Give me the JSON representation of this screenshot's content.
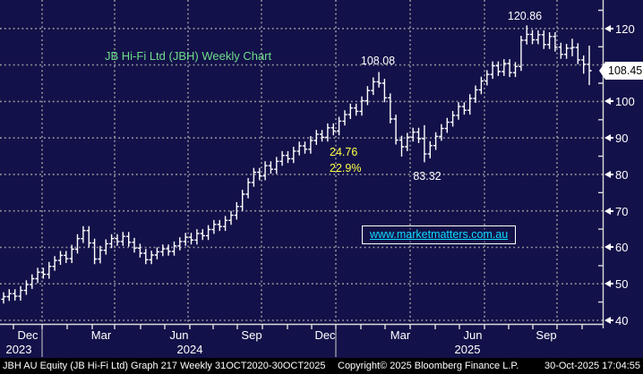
{
  "window": {
    "background": "#131149"
  },
  "title": {
    "text": "JB Hi-Fi Ltd (JBH) Weekly Chart",
    "color": "#6fdc8c"
  },
  "watermark": {
    "url": "www.marketmatters.com.au",
    "color": "#0cdcff"
  },
  "annotations": {
    "feb_2025_high": "108.08",
    "aug_2025_high": "120.86",
    "apr_2025_low": "83.32",
    "decline_points": "24.76",
    "decline_pct": "22.9%",
    "last_price": "108.45"
  },
  "x_axis": {
    "month_labels": [
      "Dec",
      "Mar",
      "Jun",
      "Sep",
      "Dec",
      "Mar",
      "Jun",
      "Sep"
    ],
    "year_labels": [
      "2023",
      "2024",
      "2025"
    ]
  },
  "y_axis": {
    "tick_labels": [
      "40",
      "50",
      "60",
      "70",
      "80",
      "90",
      "100",
      "110",
      "120"
    ]
  },
  "footer": {
    "left": "JBH AU Equity (JB Hi-Fi Ltd) Graph 217 Weekly 31OCT2020-30OCT2025",
    "center": "Copyright© 2025 Bloomberg Finance L.P.",
    "right": "30-Oct-2025 17:04:55"
  },
  "colors": {
    "background": "#131149",
    "grid": "#a8a8a8",
    "bars": "#ffffff",
    "title_green": "#6fdc8c",
    "annotation_yellow": "#ffff44",
    "watermark_cyan": "#0cdcff",
    "axis_text": "#ffffff"
  },
  "chart_data": {
    "type": "bar",
    "subtype": "weekly-ohlc-bars",
    "title": "JB Hi-Fi Ltd (JBH) Weekly Chart",
    "x_range": [
      "Nov 2023",
      "Oct 2025"
    ],
    "ylim": [
      40,
      128
    ],
    "y_ticks": [
      40,
      50,
      60,
      70,
      80,
      90,
      100,
      110,
      120
    ],
    "y_minor_ticks": [
      45,
      55,
      65,
      75,
      85,
      95,
      105,
      115,
      125
    ],
    "x_gridline_months": [
      "Dec 2023",
      "Mar 2024",
      "Jun 2024",
      "Sep 2024",
      "Dec 2024",
      "Mar 2025",
      "Jun 2025",
      "Sep 2025"
    ],
    "grid": "dotted",
    "legend_position": "none",
    "last_price": 108.45,
    "open_first": 45.8,
    "open_rule": "previous_close",
    "weeks_hlc": [
      [
        47.7,
        44.6,
        46.5
      ],
      [
        48.5,
        45.3,
        47.3
      ],
      [
        48.5,
        45.4,
        46.6
      ],
      [
        49.4,
        45.4,
        48.2
      ],
      [
        51.0,
        47.0,
        49.8
      ],
      [
        52.6,
        48.6,
        51.4
      ],
      [
        54.4,
        50.2,
        53.2
      ],
      [
        54.4,
        51.4,
        52.6
      ],
      [
        56.0,
        51.4,
        54.8
      ],
      [
        57.6,
        53.6,
        56.4
      ],
      [
        59.0,
        55.2,
        57.8
      ],
      [
        59.0,
        55.7,
        56.9
      ],
      [
        60.7,
        55.7,
        59.5
      ],
      [
        63.6,
        58.3,
        62.4
      ],
      [
        65.8,
        61.2,
        64.6
      ],
      [
        65.8,
        60.0,
        61.2
      ],
      [
        62.4,
        55.4,
        56.8
      ],
      [
        60.4,
        55.6,
        59.2
      ],
      [
        62.2,
        58.0,
        61.0
      ],
      [
        63.6,
        59.8,
        62.4
      ],
      [
        63.6,
        60.4,
        61.6
      ],
      [
        64.2,
        60.4,
        63.0
      ],
      [
        64.2,
        60.2,
        61.4
      ],
      [
        62.6,
        58.6,
        59.8
      ],
      [
        61.0,
        57.2,
        58.4
      ],
      [
        59.6,
        55.4,
        56.6
      ],
      [
        59.1,
        55.4,
        57.9
      ],
      [
        60.0,
        56.7,
        58.8
      ],
      [
        60.8,
        57.6,
        59.6
      ],
      [
        60.8,
        57.7,
        58.9
      ],
      [
        61.6,
        57.7,
        60.4
      ],
      [
        62.8,
        59.2,
        61.6
      ],
      [
        64.0,
        60.4,
        62.8
      ],
      [
        64.0,
        60.8,
        62.0
      ],
      [
        65.0,
        60.8,
        63.8
      ],
      [
        65.0,
        62.0,
        63.2
      ],
      [
        66.1,
        62.0,
        64.9
      ],
      [
        67.5,
        63.7,
        66.3
      ],
      [
        67.5,
        64.5,
        65.7
      ],
      [
        68.6,
        64.5,
        67.4
      ],
      [
        70.0,
        66.2,
        68.8
      ],
      [
        72.4,
        67.6,
        71.2
      ],
      [
        75.8,
        70.0,
        74.6
      ],
      [
        79.0,
        73.4,
        77.8
      ],
      [
        81.8,
        76.6,
        80.6
      ],
      [
        81.8,
        78.4,
        79.6
      ],
      [
        83.6,
        78.4,
        82.4
      ],
      [
        83.6,
        80.2,
        81.4
      ],
      [
        84.8,
        80.2,
        83.6
      ],
      [
        86.4,
        82.4,
        85.2
      ],
      [
        86.4,
        83.1,
        84.3
      ],
      [
        87.6,
        83.1,
        86.4
      ],
      [
        89.0,
        85.2,
        87.8
      ],
      [
        89.0,
        85.7,
        86.9
      ],
      [
        90.5,
        85.7,
        89.3
      ],
      [
        92.2,
        88.1,
        91.0
      ],
      [
        92.2,
        89.0,
        90.2
      ],
      [
        94.0,
        89.0,
        92.8
      ],
      [
        94.0,
        90.7,
        91.9
      ],
      [
        95.8,
        90.7,
        94.6
      ],
      [
        97.6,
        93.4,
        96.4
      ],
      [
        99.4,
        95.2,
        98.2
      ],
      [
        99.4,
        96.1,
        97.3
      ],
      [
        101.4,
        96.1,
        100.2
      ],
      [
        104.2,
        99.0,
        103.0
      ],
      [
        106.6,
        101.8,
        105.4
      ],
      [
        108.08,
        103.8,
        105.0
      ],
      [
        106.2,
        99.8,
        101.0
      ],
      [
        102.2,
        94.0,
        95.2
      ],
      [
        96.4,
        88.2,
        89.4
      ],
      [
        90.6,
        84.9,
        87.6
      ],
      [
        91.4,
        86.4,
        90.2
      ],
      [
        92.8,
        89.0,
        91.6
      ],
      [
        92.8,
        88.6,
        89.8
      ],
      [
        93.5,
        83.32,
        85.6
      ],
      [
        89.1,
        84.4,
        87.9
      ],
      [
        91.6,
        86.7,
        90.4
      ],
      [
        93.8,
        89.2,
        92.6
      ],
      [
        95.5,
        91.4,
        94.3
      ],
      [
        97.4,
        93.1,
        96.2
      ],
      [
        99.8,
        95.0,
        98.6
      ],
      [
        99.8,
        96.4,
        97.6
      ],
      [
        102.0,
        96.4,
        100.8
      ],
      [
        104.4,
        99.6,
        103.2
      ],
      [
        106.8,
        102.0,
        105.6
      ],
      [
        108.6,
        104.4,
        107.4
      ],
      [
        111.0,
        106.2,
        109.8
      ],
      [
        111.0,
        107.0,
        108.2
      ],
      [
        111.6,
        107.0,
        110.4
      ],
      [
        111.6,
        106.7,
        107.9
      ],
      [
        110.8,
        106.7,
        109.6
      ],
      [
        118.0,
        108.4,
        116.8
      ],
      [
        120.86,
        115.6,
        118.4
      ],
      [
        119.6,
        115.7,
        116.9
      ],
      [
        119.5,
        115.7,
        118.3
      ],
      [
        119.5,
        114.4,
        115.6
      ],
      [
        119.0,
        114.4,
        117.8
      ],
      [
        119.0,
        113.7,
        114.9
      ],
      [
        116.1,
        111.7,
        112.9
      ],
      [
        115.8,
        111.7,
        114.6
      ],
      [
        117.2,
        112.4,
        114.8
      ],
      [
        116.0,
        110.2,
        111.4
      ],
      [
        112.6,
        107.6,
        110.2
      ],
      [
        115.3,
        104.5,
        108.45
      ]
    ]
  }
}
